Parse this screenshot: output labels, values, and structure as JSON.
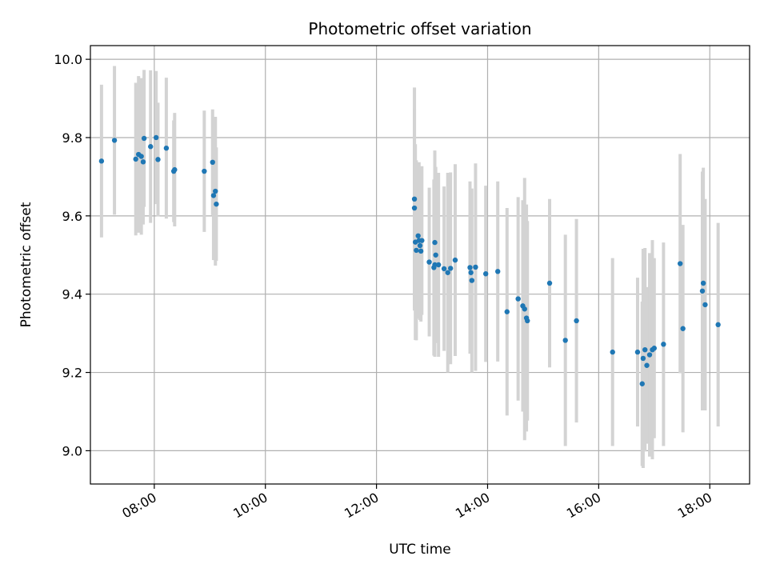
{
  "chart_data": {
    "type": "scatter",
    "title": "Photometric offset variation",
    "xlabel": "UTC time",
    "ylabel": "Photometric offset",
    "x_unit": "hours UTC",
    "xlim": [
      "06:51",
      "18:43"
    ],
    "ylim": [
      8.915,
      10.035
    ],
    "x_ticks": [
      "08:00",
      "10:00",
      "12:00",
      "14:00",
      "16:00",
      "18:00"
    ],
    "y_ticks": [
      "9.0",
      "9.2",
      "9.4",
      "9.6",
      "9.8",
      "10.0"
    ],
    "grid": true,
    "legend": "none",
    "colors": {
      "points": "#1f77b4",
      "error_bars": "#d3d3d3",
      "grid": "#b0b0b0"
    },
    "series": [
      {
        "x": [
          "07:03",
          "07:17",
          "07:40",
          "07:43",
          "07:46",
          "07:48",
          "07:49",
          "07:56",
          "08:02",
          "08:04",
          "08:13",
          "08:21",
          "08:22",
          "08:54",
          "09:03",
          "09:04",
          "09:06",
          "09:07",
          "12:41",
          "12:41",
          "12:42",
          "12:43",
          "12:45",
          "12:46",
          "12:47",
          "12:48",
          "12:49",
          "12:57",
          "13:02",
          "13:03",
          "13:03",
          "13:04",
          "13:07",
          "13:13",
          "13:17",
          "13:20",
          "13:25",
          "13:41",
          "13:42",
          "13:43",
          "13:47",
          "13:58",
          "14:11",
          "14:21",
          "14:33",
          "14:38",
          "14:40",
          "14:42",
          "14:43",
          "15:07",
          "15:24",
          "15:36",
          "16:15",
          "16:42",
          "16:47",
          "16:48",
          "16:50",
          "16:52",
          "16:55",
          "16:58",
          "17:00",
          "17:10",
          "17:28",
          "17:31",
          "17:52",
          "17:53",
          "17:55",
          "18:09"
        ],
        "y": [
          9.74,
          9.793,
          9.745,
          9.757,
          9.752,
          9.738,
          9.798,
          9.777,
          9.8,
          9.744,
          9.773,
          9.714,
          9.718,
          9.714,
          9.737,
          9.652,
          9.663,
          9.63,
          9.643,
          9.62,
          9.533,
          9.512,
          9.549,
          9.537,
          9.524,
          9.51,
          9.537,
          9.482,
          9.468,
          9.475,
          9.532,
          9.5,
          9.475,
          9.465,
          9.455,
          9.466,
          9.487,
          9.468,
          9.455,
          9.435,
          9.469,
          9.452,
          9.458,
          9.355,
          9.388,
          9.37,
          9.362,
          9.339,
          9.332,
          9.428,
          9.282,
          9.332,
          9.252,
          9.252,
          9.171,
          9.236,
          9.258,
          9.218,
          9.245,
          9.258,
          9.262,
          9.272,
          9.478,
          9.312,
          9.408,
          9.428,
          9.373,
          9.322
        ],
        "yerr": [
          0.195,
          0.19,
          0.195,
          0.2,
          0.2,
          0.16,
          0.175,
          0.195,
          0.17,
          0.145,
          0.18,
          0.13,
          0.145,
          0.155,
          0.135,
          0.165,
          0.19,
          0.145,
          0.285,
          0.255,
          0.25,
          0.23,
          0.17,
          0.2,
          0.19,
          0.18,
          0.19,
          0.19,
          0.225,
          0.235,
          0.235,
          0.225,
          0.235,
          0.21,
          0.255,
          0.245,
          0.245,
          0.22,
          0.2,
          0.235,
          0.265,
          0.225,
          0.23,
          0.265,
          0.26,
          0.27,
          0.335,
          0.29,
          0.255,
          0.215,
          0.27,
          0.26,
          0.24,
          0.19,
          0.21,
          0.28,
          0.26,
          0.2,
          0.26,
          0.28,
          0.23,
          0.26,
          0.28,
          0.265,
          0.305,
          0.295,
          0.27,
          0.26
        ]
      }
    ]
  }
}
